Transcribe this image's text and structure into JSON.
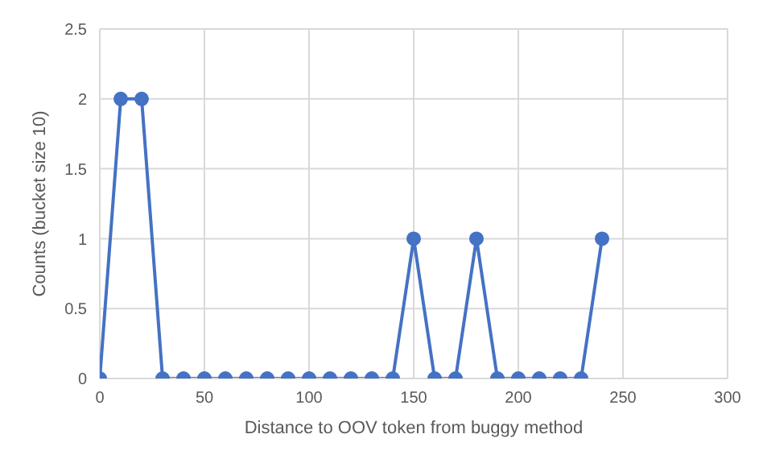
{
  "chart_data": {
    "type": "line",
    "xlabel": "Distance to OOV token from buggy method",
    "ylabel": "Counts (bucket size 10)",
    "x": [
      0,
      10,
      20,
      30,
      40,
      50,
      60,
      70,
      80,
      90,
      100,
      110,
      120,
      130,
      140,
      150,
      160,
      170,
      180,
      190,
      200,
      210,
      220,
      230,
      240
    ],
    "series": [
      {
        "color": "#4472c4",
        "values": [
          0,
          2,
          2,
          0,
          0,
          0,
          0,
          0,
          0,
          0,
          0,
          0,
          0,
          0,
          0,
          1,
          0,
          0,
          1,
          0,
          0,
          0,
          0,
          0,
          1
        ]
      }
    ],
    "xlim": [
      0,
      300
    ],
    "xticks": [
      0,
      50,
      100,
      150,
      200,
      250,
      300
    ],
    "ylim": [
      0,
      2.5
    ],
    "yticks": [
      0,
      0.5,
      1,
      1.5,
      2,
      2.5
    ],
    "grid": true,
    "marker": "circle",
    "line_style": "solid"
  }
}
